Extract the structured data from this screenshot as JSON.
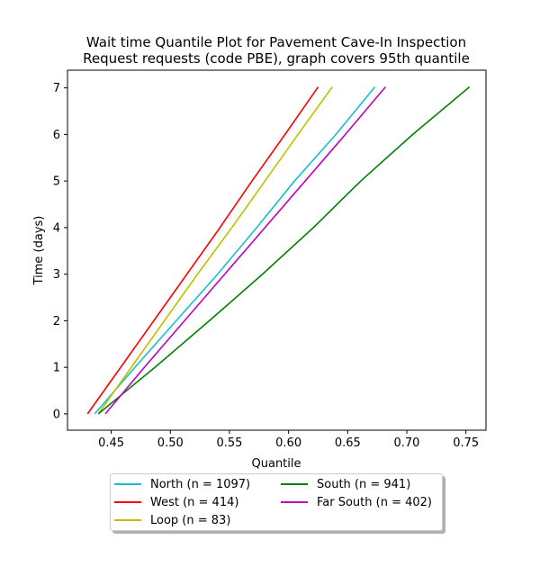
{
  "chart_data": {
    "type": "line",
    "title": "Wait time Quantile Plot for Pavement Cave-In Inspection\nRequest  requests (code PBE), graph covers 95th quantile",
    "xlabel": "Quantile",
    "ylabel": "Time (days)",
    "xlim": [
      0.413,
      0.767
    ],
    "ylim": [
      -0.35,
      7.38
    ],
    "xticks": [
      0.45,
      0.5,
      0.55,
      0.6,
      0.65,
      0.7,
      0.75
    ],
    "xtick_labels": [
      "0.45",
      "0.50",
      "0.55",
      "0.60",
      "0.65",
      "0.70",
      "0.75"
    ],
    "yticks": [
      0,
      1,
      2,
      3,
      4,
      5,
      6,
      7
    ],
    "ytick_labels": [
      "0",
      "1",
      "2",
      "3",
      "4",
      "5",
      "6",
      "7"
    ],
    "grid": false,
    "legend_placement": "below",
    "series": [
      {
        "name": "North (n = 1097)",
        "color": "#17becf",
        "x": [
          0.436,
          0.47,
          0.505,
          0.54,
          0.573,
          0.605,
          0.64,
          0.673
        ],
        "y": [
          0,
          1,
          2,
          3,
          4,
          5,
          6,
          7.02
        ]
      },
      {
        "name": "West (n = 414)",
        "color": "#ff0000",
        "x": [
          0.43,
          0.458,
          0.486,
          0.514,
          0.542,
          0.569,
          0.597,
          0.625
        ],
        "y": [
          0,
          1,
          2,
          3,
          4,
          5,
          6,
          7.02
        ]
      },
      {
        "name": "Loop (n = 83)",
        "color": "#bfbf00",
        "x": [
          0.439,
          0.467,
          0.495,
          0.523,
          0.552,
          0.58,
          0.608,
          0.637
        ],
        "y": [
          0,
          1,
          2,
          3,
          4,
          5,
          6,
          7.02
        ]
      },
      {
        "name": "South (n = 941)",
        "color": "#008000",
        "x": [
          0.439,
          0.487,
          0.533,
          0.578,
          0.621,
          0.661,
          0.705,
          0.753
        ],
        "y": [
          0,
          1,
          2,
          3,
          4,
          5,
          6,
          7.02
        ]
      },
      {
        "name": "Far South (n = 402)",
        "color": "#bf00bf",
        "x": [
          0.445,
          0.478,
          0.512,
          0.546,
          0.58,
          0.614,
          0.648,
          0.682
        ],
        "y": [
          0,
          1,
          2,
          3,
          4,
          5,
          6,
          7.02
        ]
      }
    ]
  }
}
